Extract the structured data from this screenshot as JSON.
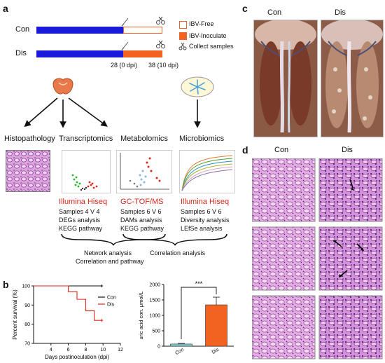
{
  "panels": {
    "a": "a",
    "b": "b",
    "c": "c",
    "d": "d"
  },
  "timeline": {
    "groups": [
      "Con",
      "Dis"
    ],
    "ticks": [
      "28 (0 dpi)",
      "38 (10 dpi)"
    ],
    "legend": [
      "IBV-Free",
      "IBV-Inoculate",
      "Collect samples"
    ],
    "colors": {
      "pre": "#1a1adb",
      "free": "#ffffff",
      "inoculate": "#f26322",
      "border": "#f26322"
    }
  },
  "workflow": {
    "categories": [
      "Histopathology",
      "Transcriptomics",
      "Metabolomics",
      "Microbiomics"
    ],
    "methods": [
      {
        "platform": "Illumina Hiseq",
        "samples": "Samples 4 V 4",
        "analysis": "DEGs analysis",
        "pathway": "KEGG pathway"
      },
      {
        "platform": "GC-TOF/MS",
        "samples": "Samples 6 V 6",
        "analysis": "DAMs analysis",
        "pathway": "KEGG pathway"
      },
      {
        "platform": "Illumina Hiseq",
        "samples": "Samples 6 V 6",
        "analysis": "Diversity analysis",
        "pathway": "LEfSe analysis"
      }
    ],
    "network": [
      "Network analysis",
      "Correlation and pathway"
    ],
    "correlation": "Correlation analysis"
  },
  "photos": {
    "left": "Con",
    "right": "Dis"
  },
  "histology": {
    "left": "Con",
    "right": "Dis"
  },
  "chart_data": [
    {
      "type": "line",
      "ylabel": "Percent survival (%)",
      "xlabel": "Days postinoculation (dpi)",
      "xlim": [
        2,
        12
      ],
      "ylim": [
        70,
        100
      ],
      "xticks": [
        4,
        6,
        8,
        10,
        12
      ],
      "yticks": [
        70,
        80,
        90,
        100
      ],
      "series": [
        {
          "name": "Con",
          "color": "#111111",
          "x": [
            2,
            10
          ],
          "y": [
            100,
            100
          ]
        },
        {
          "name": "Dis",
          "color": "#e0251b",
          "x": [
            2,
            6,
            6,
            7,
            7,
            8,
            8,
            9,
            9,
            10
          ],
          "y": [
            100,
            100,
            97,
            97,
            93,
            93,
            87,
            87,
            82,
            82
          ]
        }
      ]
    },
    {
      "type": "bar",
      "ylabel": "uric acid con. μmol/L",
      "categories": [
        "Con",
        "Dis"
      ],
      "values": [
        70,
        1340
      ],
      "errors": [
        20,
        250
      ],
      "ylim": [
        0,
        2000
      ],
      "yticks": [
        0,
        500,
        1000,
        1500,
        2000
      ],
      "colors": [
        "#7fd0d6",
        "#f26322"
      ],
      "significance": "***"
    }
  ]
}
